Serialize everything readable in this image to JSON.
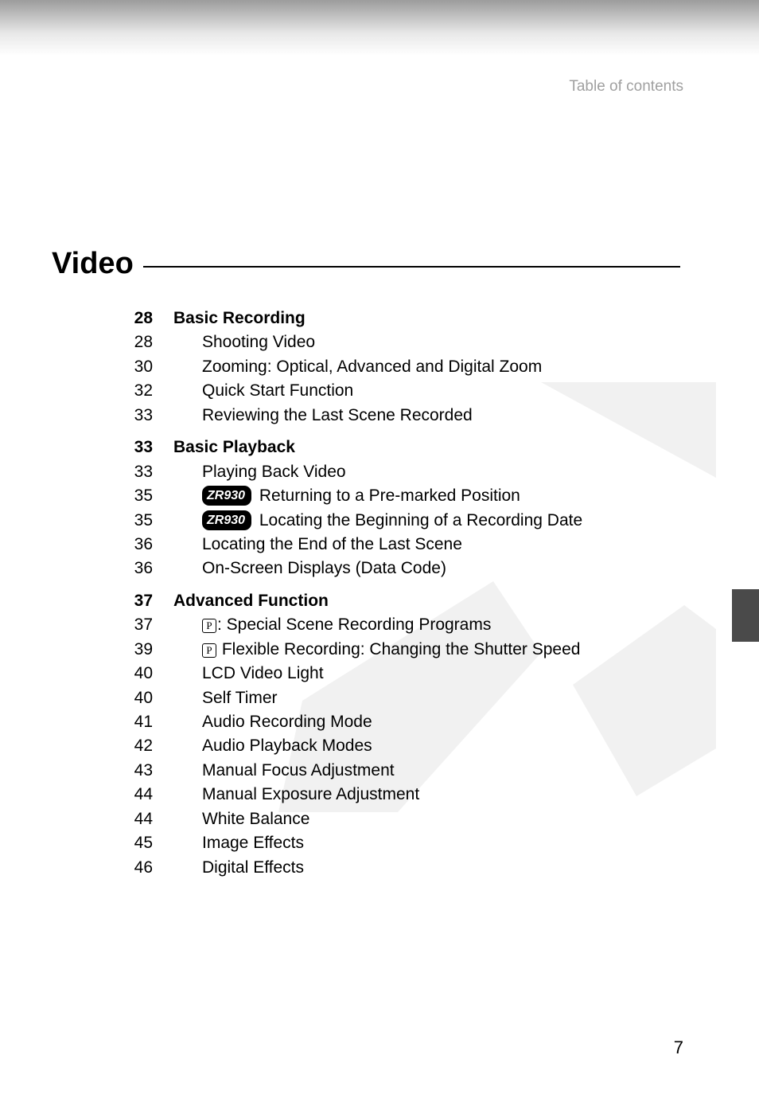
{
  "breadcrumb": "Table of contents",
  "section_title": "Video",
  "side_tab_color": "#4a4a4a",
  "page_number": "7",
  "badge_text": "ZR930",
  "p_symbol": "P",
  "toc": [
    {
      "page": "28",
      "heading": true,
      "text": "Basic Recording"
    },
    {
      "page": "28",
      "indent": true,
      "text": "Shooting Video"
    },
    {
      "page": "30",
      "indent": true,
      "text": "Zooming: Optical, Advanced and Digital Zoom"
    },
    {
      "page": "32",
      "indent": true,
      "text": "Quick Start Function"
    },
    {
      "page": "33",
      "indent": true,
      "text": "Reviewing the Last Scene Recorded"
    },
    {
      "page": "33",
      "heading": true,
      "text": "Basic Playback"
    },
    {
      "page": "33",
      "indent": true,
      "text": "Playing Back Video"
    },
    {
      "page": "35",
      "indent": true,
      "badge": true,
      "text": " Returning to a Pre-marked Position"
    },
    {
      "page": "35",
      "indent": true,
      "badge": true,
      "text": " Locating the Beginning of a Recording Date"
    },
    {
      "page": "36",
      "indent": true,
      "text": "Locating the End of the Last Scene"
    },
    {
      "page": "36",
      "indent": true,
      "text": "On-Screen Displays (Data Code)"
    },
    {
      "page": "37",
      "heading": true,
      "text": "Advanced Function"
    },
    {
      "page": "37",
      "indent": true,
      "picon": true,
      "text": ": Special Scene Recording Programs"
    },
    {
      "page": "39",
      "indent": true,
      "picon": true,
      "text": " Flexible Recording: Changing the Shutter Speed"
    },
    {
      "page": "40",
      "indent": true,
      "text": "LCD Video Light"
    },
    {
      "page": "40",
      "indent": true,
      "text": "Self Timer"
    },
    {
      "page": "41",
      "indent": true,
      "text": "Audio Recording Mode"
    },
    {
      "page": "42",
      "indent": true,
      "text": "Audio Playback Modes"
    },
    {
      "page": "43",
      "indent": true,
      "text": "Manual Focus Adjustment"
    },
    {
      "page": "44",
      "indent": true,
      "text": "Manual Exposure Adjustment"
    },
    {
      "page": "44",
      "indent": true,
      "text": "White Balance"
    },
    {
      "page": "45",
      "indent": true,
      "text": "Image Effects"
    },
    {
      "page": "46",
      "indent": true,
      "text": "Digital Effects"
    }
  ]
}
